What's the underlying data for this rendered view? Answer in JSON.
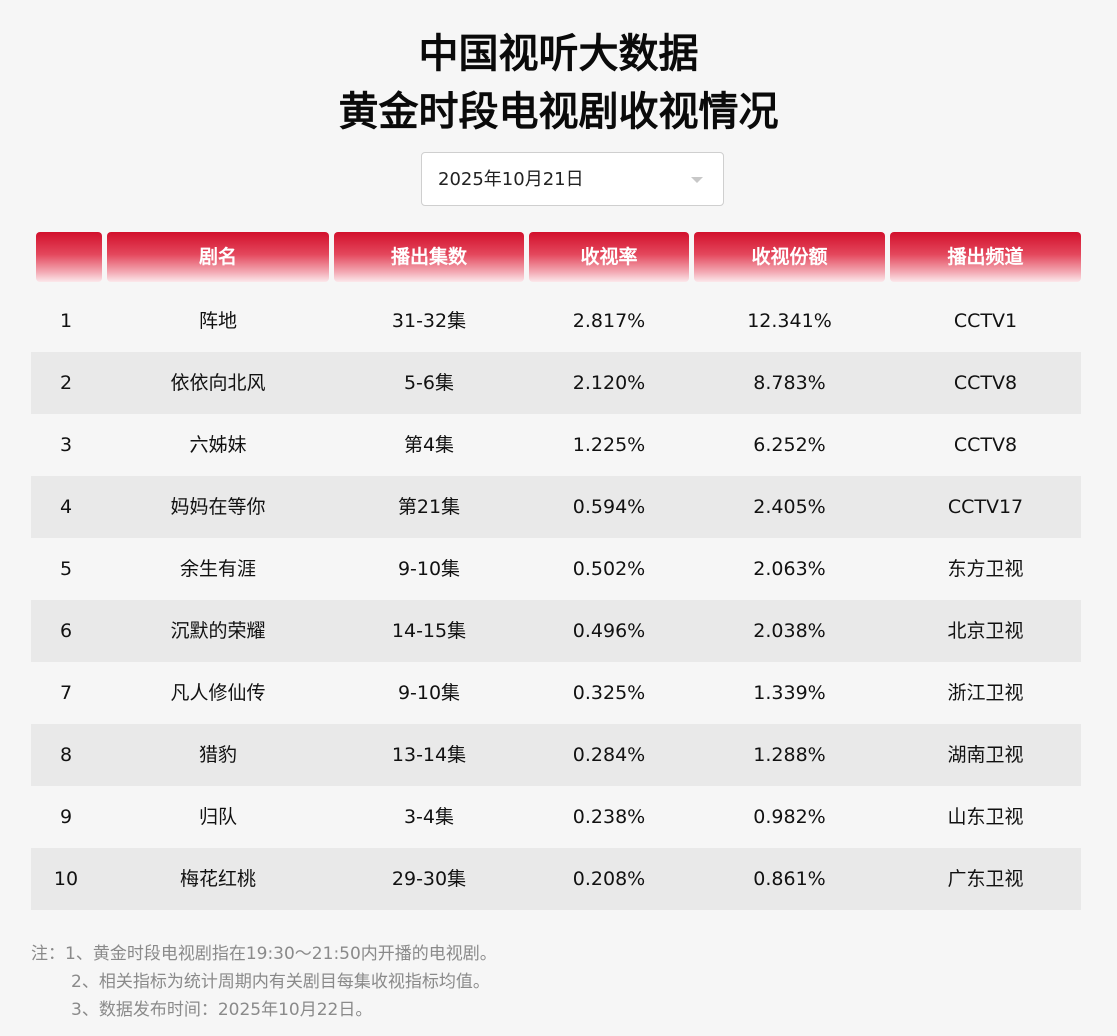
{
  "title": {
    "line1": "中国视听大数据",
    "line2": "黄金时段电视剧收视情况"
  },
  "date_select": {
    "value": "2025年10月21日"
  },
  "table": {
    "headers": [
      "",
      "剧名",
      "播出集数",
      "收视率",
      "收视份额",
      "播出频道"
    ],
    "rows": [
      {
        "rank": "1",
        "name": "阵地",
        "episodes": "31-32集",
        "rating": "2.817%",
        "share": "12.341%",
        "channel": "CCTV1"
      },
      {
        "rank": "2",
        "name": "依依向北风",
        "episodes": "5-6集",
        "rating": "2.120%",
        "share": "8.783%",
        "channel": "CCTV8"
      },
      {
        "rank": "3",
        "name": "六姊妹",
        "episodes": "第4集",
        "rating": "1.225%",
        "share": "6.252%",
        "channel": "CCTV8"
      },
      {
        "rank": "4",
        "name": "妈妈在等你",
        "episodes": "第21集",
        "rating": "0.594%",
        "share": "2.405%",
        "channel": "CCTV17"
      },
      {
        "rank": "5",
        "name": "余生有涯",
        "episodes": "9-10集",
        "rating": "0.502%",
        "share": "2.063%",
        "channel": "东方卫视"
      },
      {
        "rank": "6",
        "name": "沉默的荣耀",
        "episodes": "14-15集",
        "rating": "0.496%",
        "share": "2.038%",
        "channel": "北京卫视"
      },
      {
        "rank": "7",
        "name": "凡人修仙传",
        "episodes": "9-10集",
        "rating": "0.325%",
        "share": "1.339%",
        "channel": "浙江卫视"
      },
      {
        "rank": "8",
        "name": "猎豹",
        "episodes": "13-14集",
        "rating": "0.284%",
        "share": "1.288%",
        "channel": "湖南卫视"
      },
      {
        "rank": "9",
        "name": "归队",
        "episodes": "3-4集",
        "rating": "0.238%",
        "share": "0.982%",
        "channel": "山东卫视"
      },
      {
        "rank": "10",
        "name": "梅花红桃",
        "episodes": "29-30集",
        "rating": "0.208%",
        "share": "0.861%",
        "channel": "广东卫视"
      }
    ]
  },
  "notes": [
    "注：1、黄金时段电视剧指在19:30～21:50内开播的电视剧。",
    "2、相关指标为统计周期内有关剧目每集收视指标均值。",
    "3、数据发布时间：2025年10月22日。"
  ],
  "colors": {
    "header_red": "#d2102c",
    "stripe": "#e9e9e9",
    "background": "#f6f6f6"
  }
}
